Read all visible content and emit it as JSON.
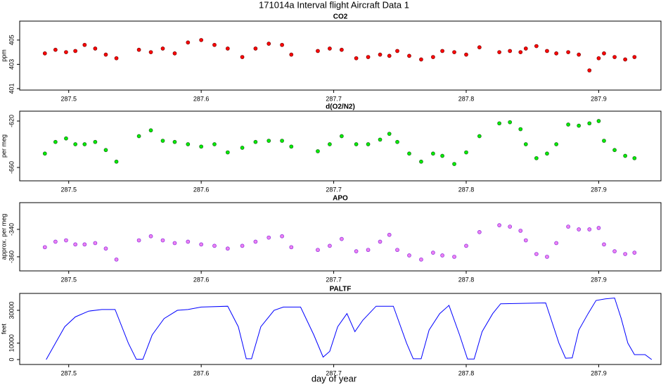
{
  "title": "171014a   Interval flight Aircraft Data 1",
  "xlabel": "day of year",
  "chart_data": [
    {
      "type": "scatter",
      "title": "CO2",
      "ylabel": "ppm",
      "color": "#ff0000",
      "edgecolor": "#7a0000",
      "x": [
        287.482,
        287.49,
        287.498,
        287.505,
        287.512,
        287.52,
        287.528,
        287.536,
        287.553,
        287.562,
        287.571,
        287.58,
        287.59,
        287.6,
        287.61,
        287.62,
        287.631,
        287.641,
        287.651,
        287.661,
        287.668,
        287.688,
        287.697,
        287.706,
        287.717,
        287.726,
        287.735,
        287.742,
        287.748,
        287.757,
        287.766,
        287.775,
        287.782,
        287.791,
        287.8,
        287.81,
        287.825,
        287.833,
        287.841,
        287.845,
        287.853,
        287.861,
        287.868,
        287.877,
        287.885,
        287.893,
        287.9,
        287.904,
        287.912,
        287.92,
        287.927
      ],
      "values": [
        403.9,
        404.2,
        404.0,
        404.1,
        404.6,
        404.3,
        403.8,
        403.5,
        404.2,
        404.0,
        404.3,
        403.9,
        404.8,
        405.0,
        404.6,
        404.3,
        403.6,
        404.3,
        404.7,
        404.6,
        403.8,
        404.1,
        404.3,
        404.2,
        403.5,
        403.6,
        403.8,
        403.7,
        404.1,
        403.7,
        403.4,
        403.6,
        404.1,
        404.0,
        403.8,
        404.4,
        404.0,
        404.1,
        404.0,
        404.3,
        404.5,
        404.1,
        403.9,
        404.0,
        403.8,
        402.5,
        403.5,
        403.9,
        403.6,
        403.4,
        403.6
      ],
      "xlim": [
        287.463,
        287.947
      ],
      "ylim": [
        400.88,
        406.56
      ],
      "xticks": [
        287.5,
        287.6,
        287.7,
        287.8,
        287.9
      ],
      "yticks": [
        401,
        403,
        405
      ]
    },
    {
      "type": "scatter",
      "title": "d(O2/N2)",
      "ylabel": "per meg",
      "color": "#00ee00",
      "edgecolor": "#1a6a1a",
      "x": [
        287.482,
        287.49,
        287.498,
        287.505,
        287.512,
        287.52,
        287.528,
        287.536,
        287.553,
        287.562,
        287.571,
        287.58,
        287.59,
        287.6,
        287.61,
        287.62,
        287.631,
        287.641,
        287.651,
        287.661,
        287.668,
        287.688,
        287.697,
        287.706,
        287.717,
        287.726,
        287.735,
        287.742,
        287.748,
        287.757,
        287.766,
        287.775,
        287.782,
        287.791,
        287.8,
        287.81,
        287.825,
        287.833,
        287.841,
        287.845,
        287.853,
        287.861,
        287.868,
        287.877,
        287.885,
        287.893,
        287.9,
        287.904,
        287.912,
        287.92,
        287.927
      ],
      "values": [
        -648,
        -638,
        -635,
        -640,
        -640,
        -638,
        -645,
        -655,
        -633,
        -628,
        -637,
        -638,
        -640,
        -642,
        -640,
        -647,
        -643,
        -638,
        -637,
        -637,
        -642,
        -646,
        -640,
        -633,
        -640,
        -640,
        -636,
        -631,
        -638,
        -648,
        -655,
        -648,
        -650,
        -657,
        -647,
        -633,
        -622,
        -621,
        -627,
        -640,
        -652,
        -648,
        -640,
        -623,
        -624,
        -622,
        -620,
        -637,
        -645,
        -650,
        -652
      ],
      "xlim": [
        287.463,
        287.947
      ],
      "ylim": [
        -671.5,
        -611.5
      ],
      "xticks": [
        287.5,
        287.6,
        287.7,
        287.8,
        287.9
      ],
      "yticks": [
        -660,
        -620
      ]
    },
    {
      "type": "scatter",
      "title": "APO",
      "ylabel": "approx. per meg",
      "color": "#ee82ee",
      "edgecolor": "#8a2be2",
      "x": [
        287.482,
        287.49,
        287.498,
        287.505,
        287.512,
        287.52,
        287.528,
        287.536,
        287.553,
        287.562,
        287.571,
        287.58,
        287.59,
        287.6,
        287.61,
        287.62,
        287.631,
        287.641,
        287.651,
        287.661,
        287.668,
        287.688,
        287.697,
        287.706,
        287.717,
        287.726,
        287.735,
        287.742,
        287.748,
        287.757,
        287.766,
        287.775,
        287.782,
        287.791,
        287.8,
        287.81,
        287.825,
        287.833,
        287.841,
        287.845,
        287.853,
        287.861,
        287.868,
        287.877,
        287.885,
        287.893,
        287.9,
        287.904,
        287.912,
        287.92,
        287.927
      ],
      "values": [
        -353,
        -349,
        -348,
        -351,
        -351,
        -350,
        -354,
        -362,
        -348,
        -345,
        -348,
        -350,
        -349,
        -351,
        -352,
        -354,
        -352,
        -349,
        -346,
        -345,
        -353,
        -355,
        -352,
        -347,
        -356,
        -355,
        -349,
        -344,
        -355,
        -359,
        -362,
        -357,
        -359,
        -360,
        -352,
        -342,
        -337,
        -338,
        -341,
        -348,
        -358,
        -360,
        -350,
        -338,
        -340,
        -340,
        -339,
        -351,
        -356,
        -358,
        -357
      ],
      "xlim": [
        287.463,
        287.947
      ],
      "ylim": [
        -370.3,
        -320.5
      ],
      "xticks": [
        287.5,
        287.6,
        287.7,
        287.8,
        287.9
      ],
      "yticks": [
        -360,
        -340
      ]
    },
    {
      "type": "line",
      "title": "PALTF",
      "ylabel": "feet",
      "color": "#0000ff",
      "x": [
        287.483,
        287.49,
        287.497,
        287.505,
        287.515,
        287.525,
        287.535,
        287.545,
        287.551,
        287.556,
        287.563,
        287.572,
        287.582,
        287.59,
        287.6,
        287.62,
        287.628,
        287.634,
        287.638,
        287.645,
        287.655,
        287.662,
        287.675,
        287.685,
        287.692,
        287.697,
        287.703,
        287.71,
        287.716,
        287.722,
        287.732,
        287.745,
        287.755,
        287.76,
        287.766,
        287.772,
        287.78,
        287.787,
        287.795,
        287.801,
        287.806,
        287.812,
        287.82,
        287.826,
        287.86,
        287.87,
        287.875,
        287.88,
        287.885,
        287.892,
        287.898,
        287.905,
        287.912,
        287.917,
        287.922,
        287.927,
        287.935,
        287.94
      ],
      "values": [
        0,
        10000,
        20000,
        26000,
        29500,
        30500,
        30500,
        10000,
        200,
        200,
        15000,
        25000,
        30000,
        30500,
        32000,
        32500,
        20000,
        500,
        500,
        20000,
        30000,
        32000,
        32000,
        15000,
        1500,
        5000,
        20000,
        28000,
        17000,
        24000,
        32500,
        32500,
        10000,
        500,
        500,
        18000,
        28000,
        33000,
        15000,
        300,
        300,
        17000,
        28000,
        34000,
        34500,
        10000,
        800,
        1000,
        18000,
        28000,
        36000,
        37000,
        37500,
        25000,
        10000,
        3000,
        3000,
        0
      ],
      "xlim": [
        287.463,
        287.947
      ],
      "ylim": [
        -3000,
        40300
      ],
      "xticks": [
        287.5,
        287.6,
        287.7,
        287.8,
        287.9
      ],
      "yticks": [
        0,
        10000,
        30000
      ]
    }
  ]
}
